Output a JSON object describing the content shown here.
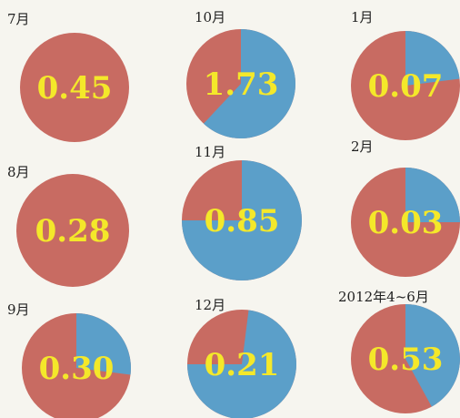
{
  "chart_data": [
    {
      "type": "pie",
      "label": "7月",
      "value_label": "0.45",
      "blue_start": 0,
      "blue_end": 0
    },
    {
      "type": "pie",
      "label": "10月",
      "value_label": "1.73",
      "blue_start": 0,
      "blue_end": 0.62
    },
    {
      "type": "pie",
      "label": "1月",
      "value_label": "0.07",
      "blue_start": 0,
      "blue_end": 0.23
    },
    {
      "type": "pie",
      "label": "8月",
      "value_label": "0.28",
      "blue_start": 0,
      "blue_end": 0
    },
    {
      "type": "pie",
      "label": "11月",
      "value_label": "0.85",
      "blue_start": 0,
      "blue_end": 0.75
    },
    {
      "type": "pie",
      "label": "2月",
      "value_label": "0.03",
      "blue_start": 0,
      "blue_end": 0.25
    },
    {
      "type": "pie",
      "label": "9月",
      "value_label": "0.30",
      "blue_start": 0,
      "blue_end": 0.27
    },
    {
      "type": "pie",
      "label": "12月",
      "value_label": "0.21",
      "blue_start": 0.02,
      "blue_end": 0.75
    },
    {
      "type": "pie",
      "label": "2012年4~6月",
      "value_label": "0.53",
      "blue_start": 0,
      "blue_end": 0.42
    }
  ],
  "colors": {
    "red": "#c86b62",
    "blue": "#5b9fc9",
    "label": "#f4e82a"
  }
}
